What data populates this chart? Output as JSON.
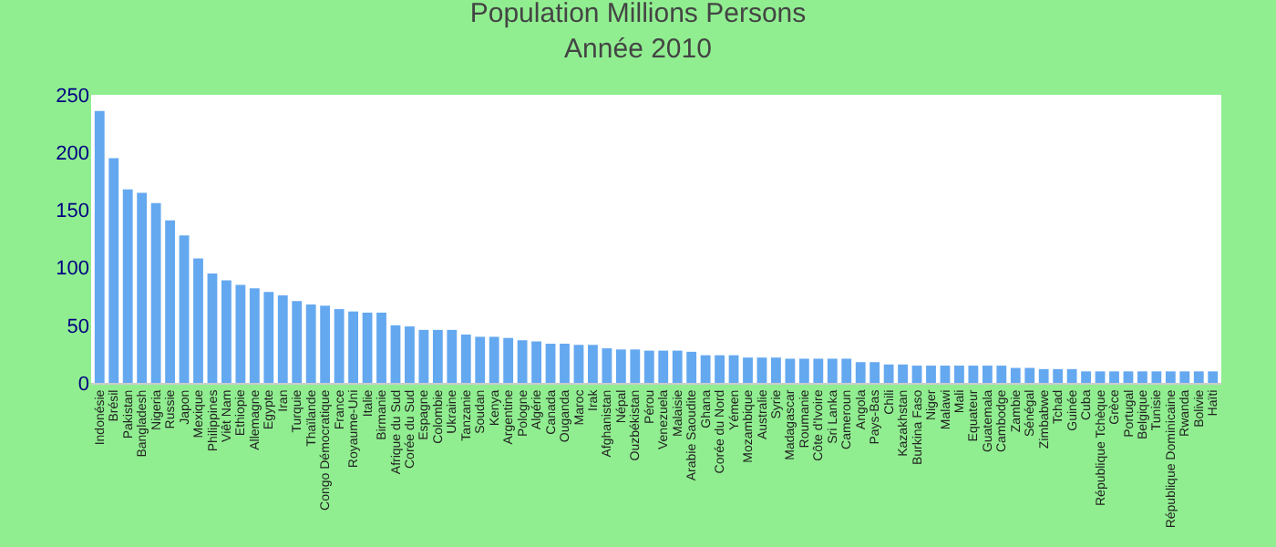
{
  "chart_data": {
    "type": "bar",
    "title": "Population Millions Persons",
    "subtitle": "Année 2010",
    "categories": [
      "Indonésie",
      "Brésil",
      "Pakistan",
      "Bangladesh",
      "Nigeria",
      "Russie",
      "Japon",
      "Mexique",
      "Philippines",
      "Viêt Nam",
      "Ethiopie",
      "Allemagne",
      "Egypte",
      "Iran",
      "Turquie",
      "Thaïlande",
      "Congo Démocratique",
      "France",
      "Royaume-Uni",
      "Italie",
      "Birmanie",
      "Afrique du Sud",
      "Corée du Sud",
      "Espagne",
      "Colombie",
      "Ukraine",
      "Tanzanie",
      "Soudan",
      "Kenya",
      "Argentine",
      "Pologne",
      "Algérie",
      "Canada",
      "Ouganda",
      "Maroc",
      "Irak",
      "Afghanistan",
      "Népal",
      "Ouzbékistan",
      "Pérou",
      "Venezuela",
      "Malaisie",
      "Arabie Saoudite",
      "Ghana",
      "Corée du Nord",
      "Yémen",
      "Mozambique",
      "Australie",
      "Syrie",
      "Madagascar",
      "Roumanie",
      "Côte d'Ivoire",
      "Sri Lanka",
      "Cameroun",
      "Angola",
      "Pays-Bas",
      "Chili",
      "Kazakhstan",
      "Burkina Faso",
      "Niger",
      "Malawi",
      "Mali",
      "Equateur",
      "Guatemala",
      "Cambodge",
      "Zambie",
      "Sénégal",
      "Zimbabwe",
      "Tchad",
      "Guinée",
      "Cuba",
      "République Tchèque",
      "Grèce",
      "Portugal",
      "Belgique",
      "Tunisie",
      "République Dominicaine",
      "Rwanda",
      "Bolivie",
      "Haïti"
    ],
    "values": [
      236,
      195,
      168,
      165,
      156,
      141,
      128,
      108,
      95,
      89,
      85,
      82,
      79,
      76,
      71,
      68,
      67,
      64,
      62,
      61,
      61,
      50,
      49,
      46,
      46,
      46,
      42,
      40,
      40,
      39,
      37,
      36,
      34,
      34,
      33,
      33,
      30,
      29,
      29,
      28,
      28,
      28,
      27,
      24,
      24,
      24,
      22,
      22,
      22,
      21,
      21,
      21,
      21,
      21,
      18,
      18,
      16,
      16,
      15,
      15,
      15,
      15,
      15,
      15,
      15,
      13,
      13,
      12,
      12,
      12,
      10,
      10,
      10,
      10,
      10,
      10,
      10,
      10,
      10,
      10
    ],
    "color": "#64a8f0",
    "ylim": [
      0,
      250
    ],
    "yticks": [
      0,
      50,
      100,
      150,
      200,
      250
    ],
    "grid": false,
    "legend": false
  }
}
